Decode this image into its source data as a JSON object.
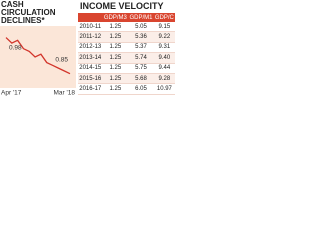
{
  "chart_data": {
    "type": "line",
    "title": "CASH CIRCULATION DECLINES*",
    "categories": [
      "Apr '17",
      null,
      null,
      null,
      null,
      null,
      null,
      null,
      null,
      null,
      null,
      "Mar '18"
    ],
    "values": [
      0.98,
      0.96,
      0.97,
      0.94,
      0.93,
      0.91,
      0.92,
      0.89,
      0.88,
      0.87,
      0.86,
      0.85
    ],
    "color": "#d2352b",
    "ylim": [
      0.82,
      1.0
    ]
  },
  "table": {
    "title": "INCOME VELOCITY",
    "header": [
      "GDP/M3",
      "GDP/M1",
      "GDP/C"
    ],
    "rows": [
      [
        "2010-11",
        "1.25",
        "5.05",
        "9.15"
      ],
      [
        "2011-12",
        "1.25",
        "5.36",
        "9.22"
      ],
      [
        "2012-13",
        "1.25",
        "5.37",
        "9.31"
      ],
      [
        "2013-14",
        "1.25",
        "5.74",
        "9.40"
      ],
      [
        "2014-15",
        "1.25",
        "5.75",
        "9.44"
      ],
      [
        "2015-16",
        "1.25",
        "5.68",
        "9.28"
      ],
      [
        "2016-17",
        "1.25",
        "6.05",
        "10.97"
      ]
    ]
  }
}
